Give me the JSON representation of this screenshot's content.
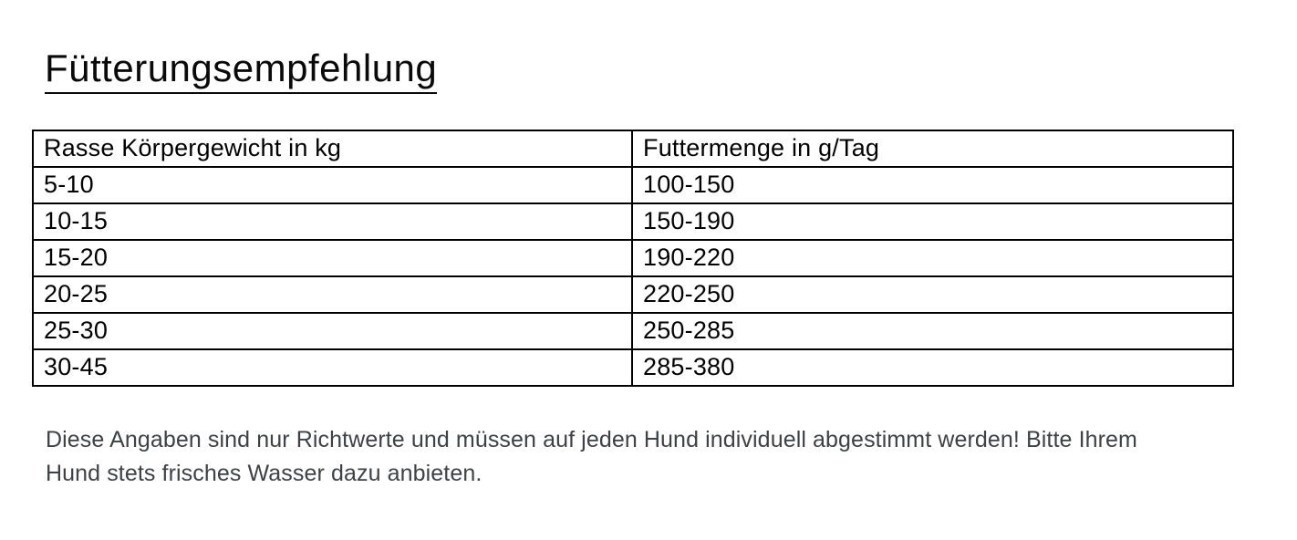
{
  "title": "Fütterungsempfehlung",
  "table": {
    "headers": [
      "Rasse Körpergewicht in kg",
      "Futtermenge in g/Tag"
    ],
    "rows": [
      [
        "5-10",
        "100-150"
      ],
      [
        "10-15",
        "150-190"
      ],
      [
        "15-20",
        "190-220"
      ],
      [
        "20-25",
        "220-250"
      ],
      [
        "25-30",
        "250-285"
      ],
      [
        "30-45",
        "285-380"
      ]
    ]
  },
  "note_lines": [
    "Diese Angaben sind nur Richtwerte und müssen auf jeden Hund individuell abgestimmt werden! Bitte Ihrem",
    "Hund stets frisches Wasser dazu anbieten."
  ],
  "colors": {
    "background": "#ffffff",
    "text": "#000000",
    "note_text": "#3e4145",
    "border": "#000000"
  }
}
